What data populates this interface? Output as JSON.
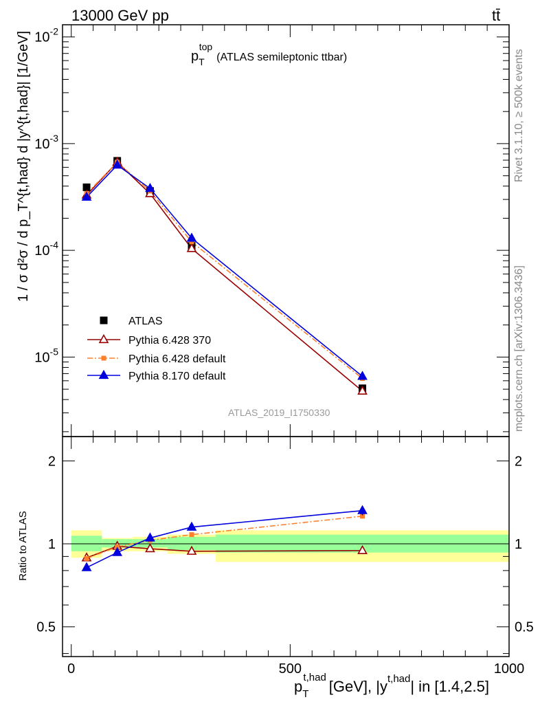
{
  "header": {
    "energy_label": "13000 GeV pp",
    "process_label": "tt̄"
  },
  "side_text": {
    "rivet": "Rivet 3.1.10, ≥ 500k events",
    "site": "mcplots.cern.ch [arXiv:1306.3436]"
  },
  "watermark": "ATLAS_2019_I1750330",
  "colors": {
    "data": "#000000",
    "py6_370": "#990000",
    "py6_default": "#ff7f2a",
    "py8_default": "#0000dd",
    "band_inner": "#99ff99",
    "band_outer": "#ffff99"
  },
  "chart_data": [
    {
      "type": "line",
      "title": "p_T^top (ATLAS semileptonic ttbar)",
      "title_parts": {
        "base": "p",
        "sub": "T",
        "sup": "top",
        "rest": "(ATLAS semileptonic ttbar)"
      },
      "ylabel": "1 / σ d²σ / d p_T^{t,had} d |y^{t,had}| [1/GeV]",
      "yscale": "log",
      "xlim": [
        -20,
        1000
      ],
      "ylim": [
        1.8e-06,
        0.013
      ],
      "y_ticks": [
        {
          "value": 0.01,
          "label": "10",
          "exp": "-2"
        },
        {
          "value": 0.001,
          "label": "10",
          "exp": "-3"
        },
        {
          "value": 0.0001,
          "label": "10",
          "exp": "-4"
        },
        {
          "value": 1e-05,
          "label": "10",
          "exp": "-5"
        }
      ],
      "x": [
        35,
        105,
        180,
        275,
        665
      ],
      "series": [
        {
          "name": "ATLAS",
          "marker": "square",
          "values": [
            0.00039,
            0.00069,
            0.00036,
            0.00011,
            5.1e-06
          ]
        },
        {
          "name": "Pythia 6.428 370",
          "marker": "open-triangle",
          "line": "solid",
          "values": [
            0.00033,
            0.00067,
            0.00034,
            0.000104,
            4.8e-06
          ]
        },
        {
          "name": "Pythia 6.428 default",
          "marker": "small-square",
          "line": "dashdot",
          "values": [
            0.00034,
            0.00067,
            0.00036,
            0.00012,
            6.3e-06
          ]
        },
        {
          "name": "Pythia 8.170 default",
          "marker": "triangle",
          "line": "solid",
          "values": [
            0.000315,
            0.00063,
            0.00038,
            0.00013,
            6.6e-06
          ]
        }
      ],
      "legend_position": "bottom-left"
    },
    {
      "type": "line",
      "ylabel": "Ratio to ATLAS",
      "xlabel": "p_T^{t,had} [GeV], |y^{t,had}| in [1.4,2.5]",
      "xlabel_parts": {
        "base": "p",
        "sub": "T",
        "sup": "t,had",
        "mid": "[GeV], |y",
        "sup2": "t,had",
        "rest": "| in [1.4,2.5]"
      },
      "xlim": [
        -20,
        1000
      ],
      "ylim": [
        0.39,
        2.45
      ],
      "y_ticks": [
        {
          "value": 0.5,
          "label": "0.5"
        },
        {
          "value": 1,
          "label": "1"
        },
        {
          "value": 2,
          "label": "2"
        }
      ],
      "x_ticks": [
        {
          "value": 0,
          "label": "0"
        },
        {
          "value": 500,
          "label": "500"
        },
        {
          "value": 1000,
          "label": "1000"
        }
      ],
      "bins": [
        0,
        70,
        140,
        220,
        330,
        1000
      ],
      "band_inner": [
        [
          0.94,
          1.07
        ],
        [
          0.97,
          1.04
        ],
        [
          0.97,
          1.04
        ],
        [
          0.95,
          1.06
        ],
        [
          0.93,
          1.08
        ]
      ],
      "band_outer": [
        [
          0.89,
          1.12
        ],
        [
          0.94,
          1.05
        ],
        [
          0.94,
          1.06
        ],
        [
          0.92,
          1.08
        ],
        [
          0.86,
          1.12
        ]
      ],
      "x": [
        35,
        105,
        180,
        275,
        665
      ],
      "series": [
        {
          "name": "Pythia 6.428 370",
          "values": [
            0.89,
            0.98,
            0.96,
            0.94,
            0.945
          ]
        },
        {
          "name": "Pythia 6.428 default",
          "values": [
            0.885,
            0.975,
            1.03,
            1.08,
            1.26
          ]
        },
        {
          "name": "Pythia 8.170 default",
          "values": [
            0.82,
            0.93,
            1.05,
            1.15,
            1.32
          ],
          "errors": [
            0.01,
            0.01,
            0.01,
            0.03,
            0.05
          ]
        }
      ]
    }
  ]
}
